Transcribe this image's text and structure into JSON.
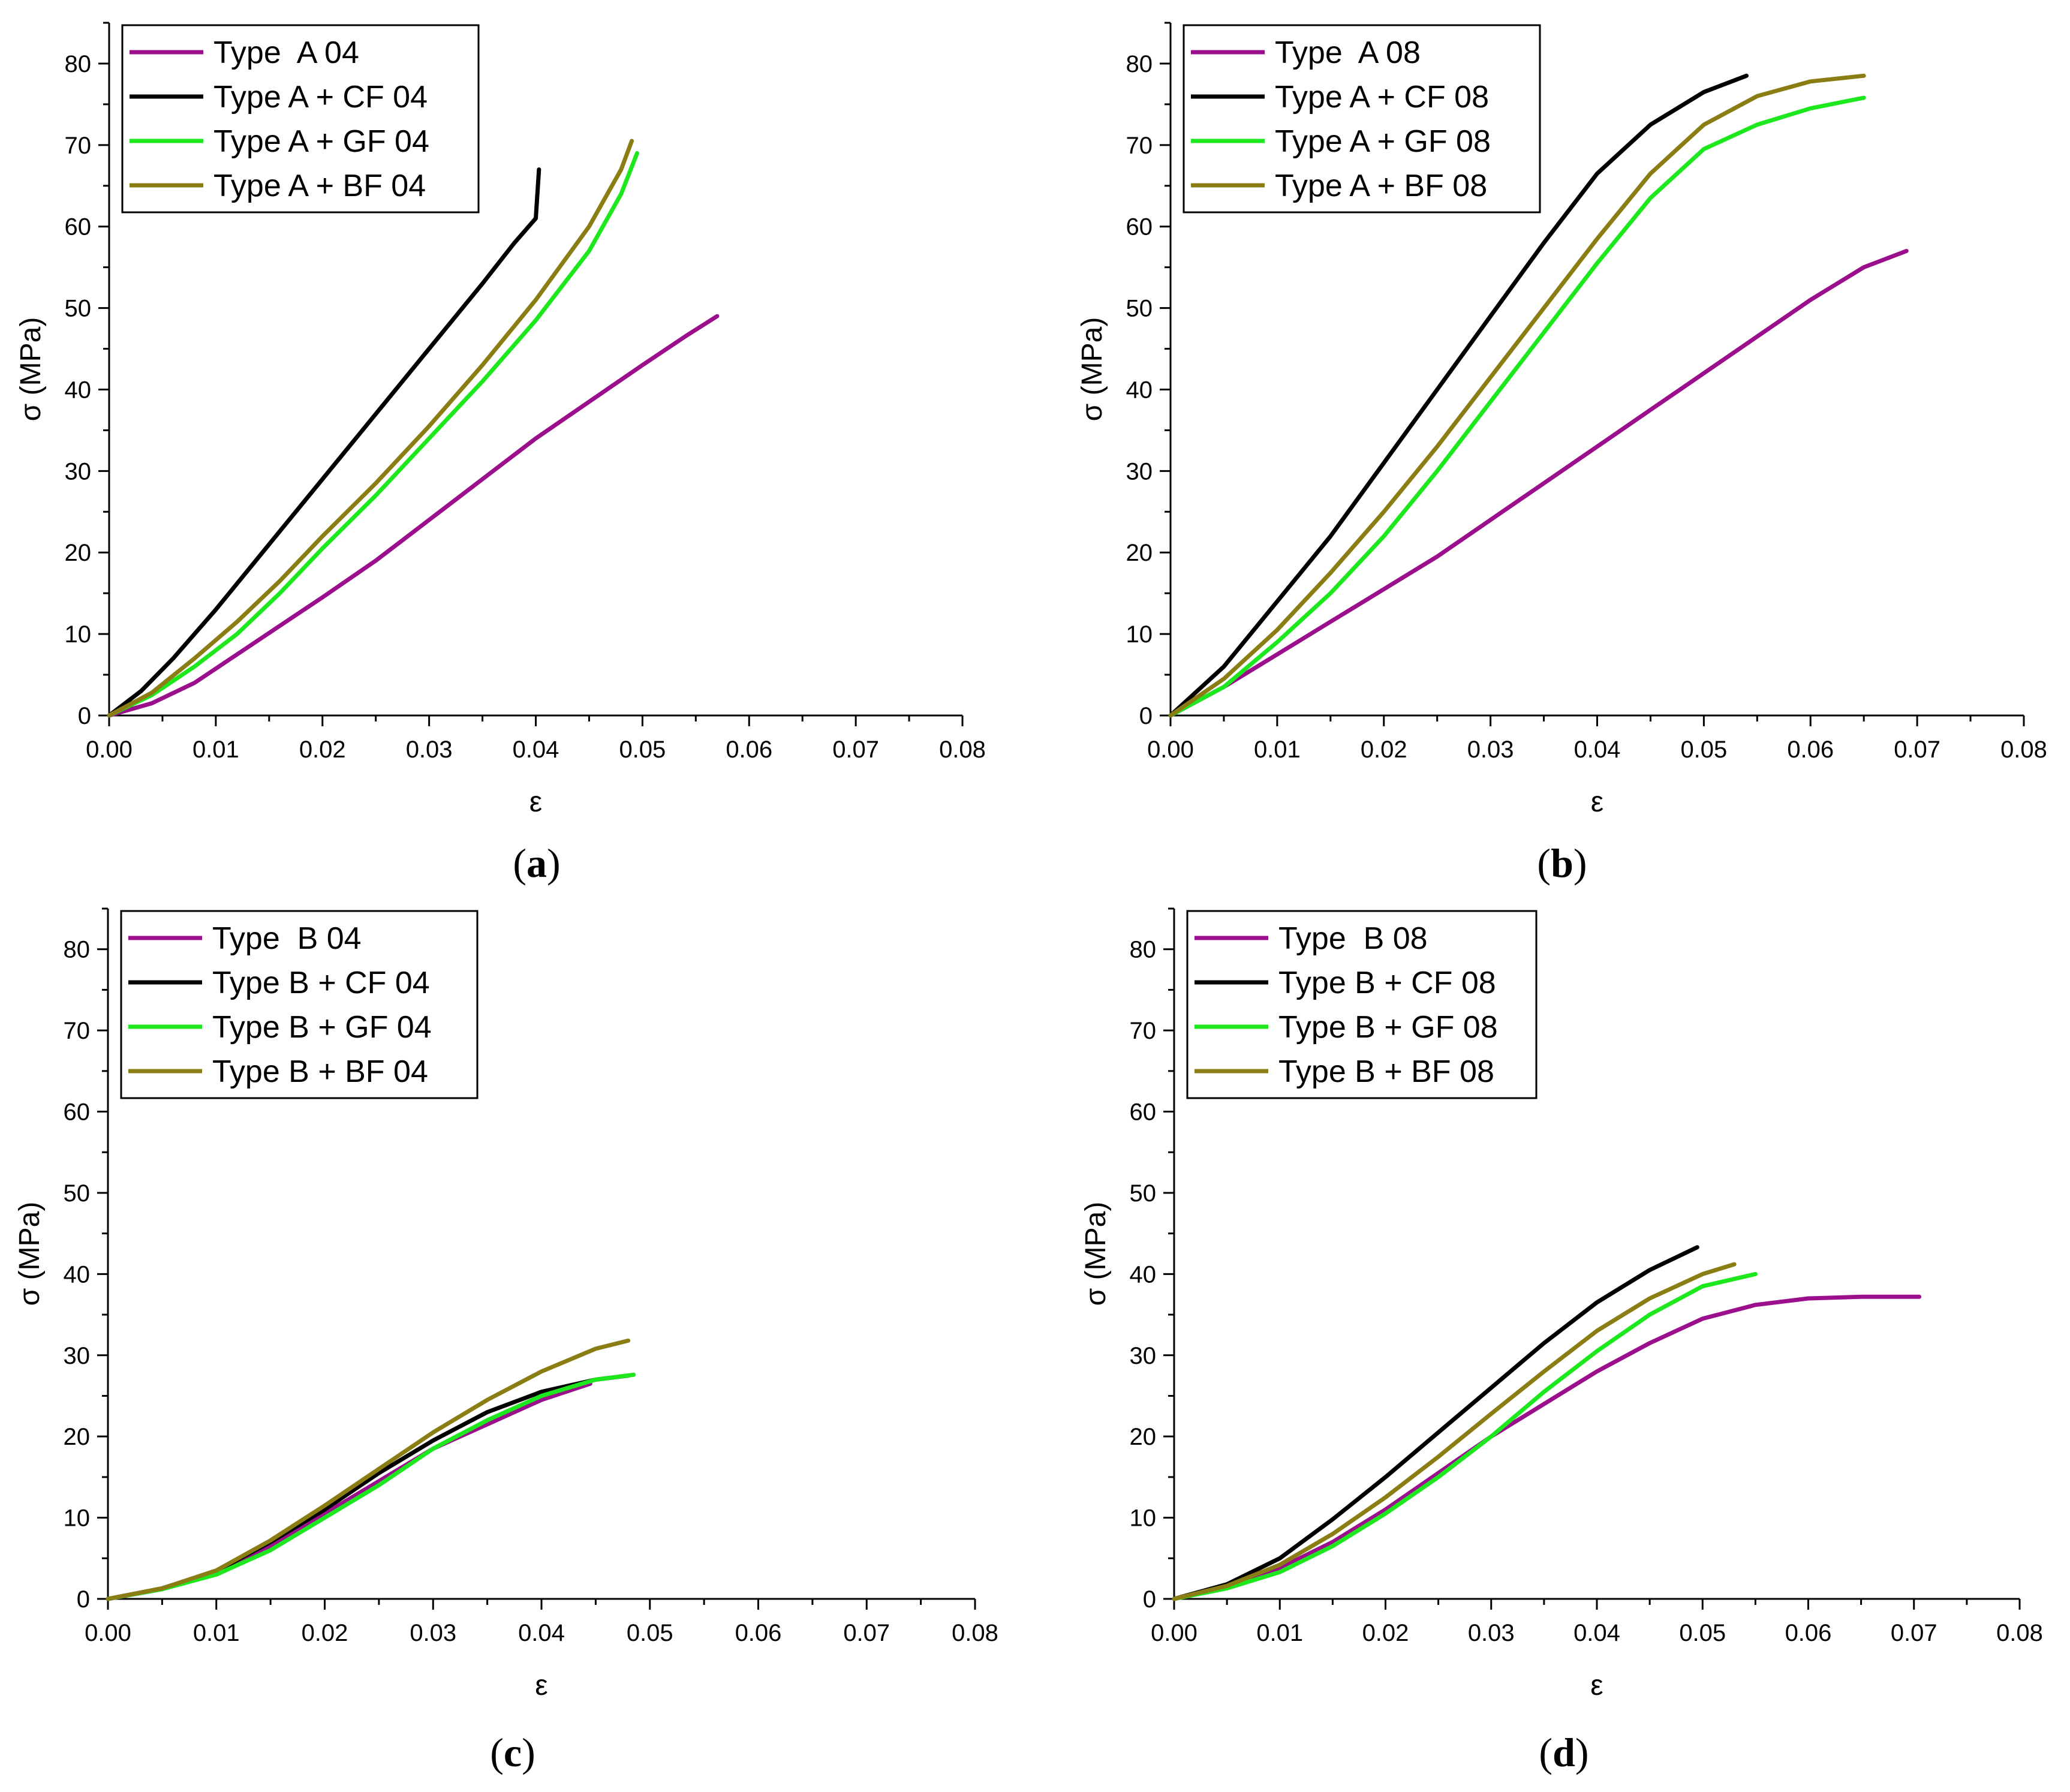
{
  "chart_data": [
    {
      "id": "a",
      "type": "line",
      "caption_letter": "a",
      "xlabel": "ε",
      "ylabel": "σ (MPa)",
      "xlim": [
        0,
        0.08
      ],
      "ylim": [
        0,
        85
      ],
      "xticks": [
        "0.00",
        "0.01",
        "0.02",
        "0.03",
        "0.04",
        "0.05",
        "0.06",
        "0.07",
        "0.08"
      ],
      "yticks": [
        "0",
        "10",
        "20",
        "30",
        "40",
        "50",
        "60",
        "70",
        "80"
      ],
      "legend_position": "top-left",
      "series": [
        {
          "name": "Type  A 04",
          "color": "#9b0f8c",
          "points": [
            [
              0,
              0
            ],
            [
              0.004,
              1.5
            ],
            [
              0.008,
              4
            ],
            [
              0.012,
              7.5
            ],
            [
              0.016,
              11
            ],
            [
              0.02,
              14.5
            ],
            [
              0.025,
              19
            ],
            [
              0.03,
              24
            ],
            [
              0.035,
              29
            ],
            [
              0.04,
              34
            ],
            [
              0.045,
              38.5
            ],
            [
              0.05,
              43
            ],
            [
              0.054,
              46.5
            ],
            [
              0.057,
              49
            ]
          ]
        },
        {
          "name": "Type A + CF 04",
          "color": "#000000",
          "points": [
            [
              0,
              0
            ],
            [
              0.003,
              3
            ],
            [
              0.006,
              7
            ],
            [
              0.01,
              13
            ],
            [
              0.015,
              21
            ],
            [
              0.02,
              29
            ],
            [
              0.025,
              37
            ],
            [
              0.03,
              45
            ],
            [
              0.035,
              53
            ],
            [
              0.038,
              58
            ],
            [
              0.04,
              61
            ],
            [
              0.0403,
              67
            ]
          ]
        },
        {
          "name": "Type A + GF 04",
          "color": "#1de81d",
          "points": [
            [
              0,
              0
            ],
            [
              0.004,
              2.5
            ],
            [
              0.008,
              6
            ],
            [
              0.012,
              10
            ],
            [
              0.016,
              15
            ],
            [
              0.02,
              20.5
            ],
            [
              0.025,
              27
            ],
            [
              0.03,
              34
            ],
            [
              0.035,
              41
            ],
            [
              0.04,
              48.5
            ],
            [
              0.045,
              57
            ],
            [
              0.048,
              64
            ],
            [
              0.0495,
              69
            ]
          ]
        },
        {
          "name": "Type A + BF 04",
          "color": "#8a7d14",
          "points": [
            [
              0,
              0
            ],
            [
              0.004,
              2.8
            ],
            [
              0.008,
              7
            ],
            [
              0.012,
              11.5
            ],
            [
              0.016,
              16.5
            ],
            [
              0.02,
              22
            ],
            [
              0.025,
              28.5
            ],
            [
              0.03,
              35.5
            ],
            [
              0.035,
              43
            ],
            [
              0.04,
              51
            ],
            [
              0.045,
              60
            ],
            [
              0.048,
              67
            ],
            [
              0.049,
              70.5
            ]
          ]
        }
      ]
    },
    {
      "id": "b",
      "type": "line",
      "caption_letter": "b",
      "xlabel": "ε",
      "ylabel": "σ (MPa)",
      "xlim": [
        0,
        0.08
      ],
      "ylim": [
        0,
        85
      ],
      "xticks": [
        "0.00",
        "0.01",
        "0.02",
        "0.03",
        "0.04",
        "0.05",
        "0.06",
        "0.07",
        "0.08"
      ],
      "yticks": [
        "0",
        "10",
        "20",
        "30",
        "40",
        "50",
        "60",
        "70",
        "80"
      ],
      "legend_position": "top-left",
      "series": [
        {
          "name": "Type  A 08",
          "color": "#9b0f8c",
          "points": [
            [
              0,
              0
            ],
            [
              0.005,
              3.5
            ],
            [
              0.01,
              7.5
            ],
            [
              0.015,
              11.5
            ],
            [
              0.02,
              15.5
            ],
            [
              0.025,
              19.5
            ],
            [
              0.03,
              24
            ],
            [
              0.035,
              28.5
            ],
            [
              0.04,
              33
            ],
            [
              0.045,
              37.5
            ],
            [
              0.05,
              42
            ],
            [
              0.055,
              46.5
            ],
            [
              0.06,
              51
            ],
            [
              0.065,
              55
            ],
            [
              0.069,
              57
            ]
          ]
        },
        {
          "name": "Type A + CF 08",
          "color": "#000000",
          "points": [
            [
              0,
              0
            ],
            [
              0.005,
              6
            ],
            [
              0.01,
              14
            ],
            [
              0.015,
              22
            ],
            [
              0.02,
              31
            ],
            [
              0.025,
              40
            ],
            [
              0.03,
              49
            ],
            [
              0.035,
              58
            ],
            [
              0.04,
              66.5
            ],
            [
              0.045,
              72.5
            ],
            [
              0.05,
              76.5
            ],
            [
              0.054,
              78.5
            ]
          ]
        },
        {
          "name": "Type A + GF 08",
          "color": "#1de81d",
          "points": [
            [
              0,
              0
            ],
            [
              0.005,
              3.5
            ],
            [
              0.01,
              9
            ],
            [
              0.015,
              15
            ],
            [
              0.02,
              22
            ],
            [
              0.025,
              30
            ],
            [
              0.03,
              38.5
            ],
            [
              0.035,
              47
            ],
            [
              0.04,
              55.5
            ],
            [
              0.045,
              63.5
            ],
            [
              0.05,
              69.5
            ],
            [
              0.055,
              72.5
            ],
            [
              0.06,
              74.5
            ],
            [
              0.065,
              75.8
            ]
          ]
        },
        {
          "name": "Type A + BF 08",
          "color": "#8a7d14",
          "points": [
            [
              0,
              0
            ],
            [
              0.005,
              4.5
            ],
            [
              0.01,
              10.5
            ],
            [
              0.015,
              17.5
            ],
            [
              0.02,
              25
            ],
            [
              0.025,
              33
            ],
            [
              0.03,
              41.5
            ],
            [
              0.035,
              50
            ],
            [
              0.04,
              58.5
            ],
            [
              0.045,
              66.5
            ],
            [
              0.05,
              72.5
            ],
            [
              0.055,
              76
            ],
            [
              0.06,
              77.8
            ],
            [
              0.065,
              78.5
            ]
          ]
        }
      ]
    },
    {
      "id": "c",
      "type": "line",
      "caption_letter": "c",
      "xlabel": "ε",
      "ylabel": "σ (MPa)",
      "xlim": [
        0,
        0.08
      ],
      "ylim": [
        0,
        85
      ],
      "xticks": [
        "0.00",
        "0.01",
        "0.02",
        "0.03",
        "0.04",
        "0.05",
        "0.06",
        "0.07",
        "0.08"
      ],
      "yticks": [
        "0",
        "10",
        "20",
        "30",
        "40",
        "50",
        "60",
        "70",
        "80"
      ],
      "legend_position": "top-left",
      "series": [
        {
          "name": "Type  B 04",
          "color": "#9b0f8c",
          "points": [
            [
              0,
              0
            ],
            [
              0.005,
              1.2
            ],
            [
              0.01,
              3.2
            ],
            [
              0.015,
              6.5
            ],
            [
              0.02,
              10.5
            ],
            [
              0.025,
              14.5
            ],
            [
              0.03,
              18.5
            ],
            [
              0.035,
              21.5
            ],
            [
              0.04,
              24.5
            ],
            [
              0.0445,
              26.5
            ]
          ]
        },
        {
          "name": "Type B + CF 04",
          "color": "#000000",
          "points": [
            [
              0,
              0
            ],
            [
              0.005,
              1.3
            ],
            [
              0.01,
              3.4
            ],
            [
              0.015,
              7
            ],
            [
              0.02,
              11
            ],
            [
              0.025,
              15.5
            ],
            [
              0.03,
              19.5
            ],
            [
              0.035,
              23
            ],
            [
              0.04,
              25.5
            ],
            [
              0.045,
              27
            ],
            [
              0.048,
              27.5
            ]
          ]
        },
        {
          "name": "Type B + GF 04",
          "color": "#1de81d",
          "points": [
            [
              0,
              0
            ],
            [
              0.005,
              1.2
            ],
            [
              0.01,
              3
            ],
            [
              0.015,
              6
            ],
            [
              0.02,
              10
            ],
            [
              0.025,
              14
            ],
            [
              0.03,
              18.5
            ],
            [
              0.035,
              22
            ],
            [
              0.04,
              25
            ],
            [
              0.045,
              27
            ],
            [
              0.0485,
              27.6
            ]
          ]
        },
        {
          "name": "Type B + BF 04",
          "color": "#8a7d14",
          "points": [
            [
              0,
              0
            ],
            [
              0.005,
              1.3
            ],
            [
              0.01,
              3.5
            ],
            [
              0.015,
              7.2
            ],
            [
              0.02,
              11.5
            ],
            [
              0.025,
              16
            ],
            [
              0.03,
              20.5
            ],
            [
              0.035,
              24.5
            ],
            [
              0.04,
              28
            ],
            [
              0.045,
              30.8
            ],
            [
              0.048,
              31.8
            ]
          ]
        }
      ]
    },
    {
      "id": "d",
      "type": "line",
      "caption_letter": "d",
      "xlabel": "ε",
      "ylabel": "σ (MPa)",
      "xlim": [
        0,
        0.08
      ],
      "ylim": [
        0,
        85
      ],
      "xticks": [
        "0.00",
        "0.01",
        "0.02",
        "0.03",
        "0.04",
        "0.05",
        "0.06",
        "0.07",
        "0.08"
      ],
      "yticks": [
        "0",
        "10",
        "20",
        "30",
        "40",
        "50",
        "60",
        "70",
        "80"
      ],
      "legend_position": "top-left",
      "series": [
        {
          "name": "Type  B 08",
          "color": "#9b0f8c",
          "points": [
            [
              0,
              0
            ],
            [
              0.005,
              1.5
            ],
            [
              0.01,
              3.8
            ],
            [
              0.015,
              7
            ],
            [
              0.02,
              11
            ],
            [
              0.025,
              15.5
            ],
            [
              0.03,
              20
            ],
            [
              0.035,
              24
            ],
            [
              0.04,
              28
            ],
            [
              0.045,
              31.5
            ],
            [
              0.05,
              34.5
            ],
            [
              0.055,
              36.2
            ],
            [
              0.06,
              37
            ],
            [
              0.065,
              37.2
            ],
            [
              0.0705,
              37.2
            ]
          ]
        },
        {
          "name": "Type B + CF 08",
          "color": "#000000",
          "points": [
            [
              0,
              0
            ],
            [
              0.005,
              1.8
            ],
            [
              0.01,
              5
            ],
            [
              0.015,
              9.8
            ],
            [
              0.02,
              15
            ],
            [
              0.025,
              20.5
            ],
            [
              0.03,
              26
            ],
            [
              0.035,
              31.5
            ],
            [
              0.04,
              36.5
            ],
            [
              0.045,
              40.5
            ],
            [
              0.0495,
              43.3
            ]
          ]
        },
        {
          "name": "Type B + GF 08",
          "color": "#1de81d",
          "points": [
            [
              0,
              0
            ],
            [
              0.005,
              1.3
            ],
            [
              0.01,
              3.3
            ],
            [
              0.015,
              6.5
            ],
            [
              0.02,
              10.5
            ],
            [
              0.025,
              15
            ],
            [
              0.03,
              20
            ],
            [
              0.035,
              25.5
            ],
            [
              0.04,
              30.5
            ],
            [
              0.045,
              35
            ],
            [
              0.05,
              38.5
            ],
            [
              0.055,
              40
            ]
          ]
        },
        {
          "name": "Type B + BF 08",
          "color": "#8a7d14",
          "points": [
            [
              0,
              0
            ],
            [
              0.005,
              1.6
            ],
            [
              0.01,
              4.2
            ],
            [
              0.015,
              8
            ],
            [
              0.02,
              12.5
            ],
            [
              0.025,
              17.5
            ],
            [
              0.03,
              22.8
            ],
            [
              0.035,
              28
            ],
            [
              0.04,
              33
            ],
            [
              0.045,
              37
            ],
            [
              0.05,
              40
            ],
            [
              0.053,
              41.2
            ]
          ]
        }
      ]
    }
  ]
}
